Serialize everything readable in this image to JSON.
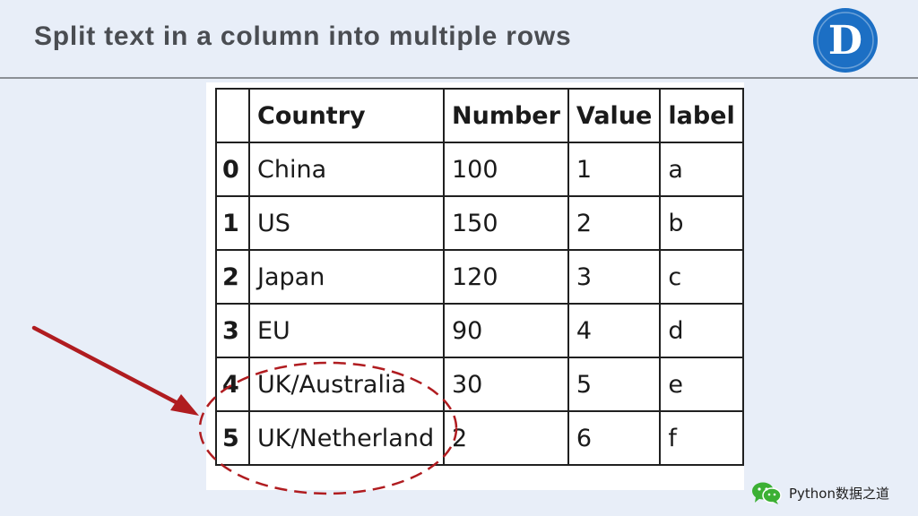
{
  "header": {
    "title": "Split text in a column into multiple rows",
    "logo_letter": "D"
  },
  "table": {
    "columns": [
      "",
      "Country",
      "Number",
      "Value",
      "label"
    ],
    "rows": [
      {
        "index": "0",
        "country": "China",
        "number": "100",
        "value": "1",
        "label": "a"
      },
      {
        "index": "1",
        "country": "US",
        "number": "150",
        "value": "2",
        "label": "b"
      },
      {
        "index": "2",
        "country": "Japan",
        "number": "120",
        "value": "3",
        "label": "c"
      },
      {
        "index": "3",
        "country": "EU",
        "number": "90",
        "value": "4",
        "label": "d"
      },
      {
        "index": "4",
        "country": "UK/Australia",
        "number": "30",
        "value": "5",
        "label": "e"
      },
      {
        "index": "5",
        "country": "UK/Netherland",
        "number": "2",
        "value": "6",
        "label": "f"
      }
    ]
  },
  "footer": {
    "text": "Python数据之道",
    "icon": "wechat-icon"
  },
  "colors": {
    "background": "#e8eef8",
    "logo_blue": "#1c6fc4",
    "annotation_red": "#b01c20"
  }
}
